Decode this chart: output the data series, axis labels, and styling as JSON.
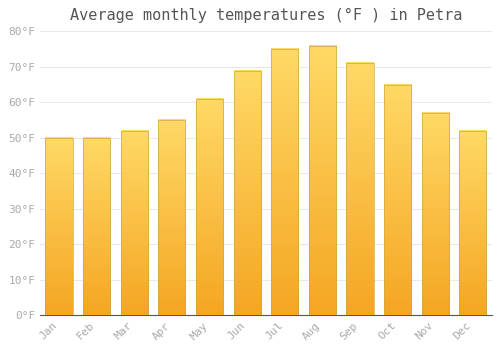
{
  "title": "Average monthly temperatures (°F ) in Petra",
  "months": [
    "Jan",
    "Feb",
    "Mar",
    "Apr",
    "May",
    "Jun",
    "Jul",
    "Aug",
    "Sep",
    "Oct",
    "Nov",
    "Dec"
  ],
  "values": [
    50,
    50,
    52,
    55,
    61,
    69,
    75,
    76,
    71,
    65,
    57,
    52
  ],
  "bar_color_bottom": "#F5A623",
  "bar_color_top": "#FFD966",
  "ylim": [
    0,
    80
  ],
  "yticks": [
    0,
    10,
    20,
    30,
    40,
    50,
    60,
    70,
    80
  ],
  "ytick_labels": [
    "0°F",
    "10°F",
    "20°F",
    "30°F",
    "40°F",
    "50°F",
    "60°F",
    "70°F",
    "80°F"
  ],
  "background_color": "#ffffff",
  "plot_bg_color": "#ffffff",
  "grid_color": "#e8e8e8",
  "title_fontsize": 11,
  "tick_fontsize": 8,
  "tick_color": "#aaaaaa",
  "bar_edge_color": "#ccaa44",
  "bar_width": 0.72
}
